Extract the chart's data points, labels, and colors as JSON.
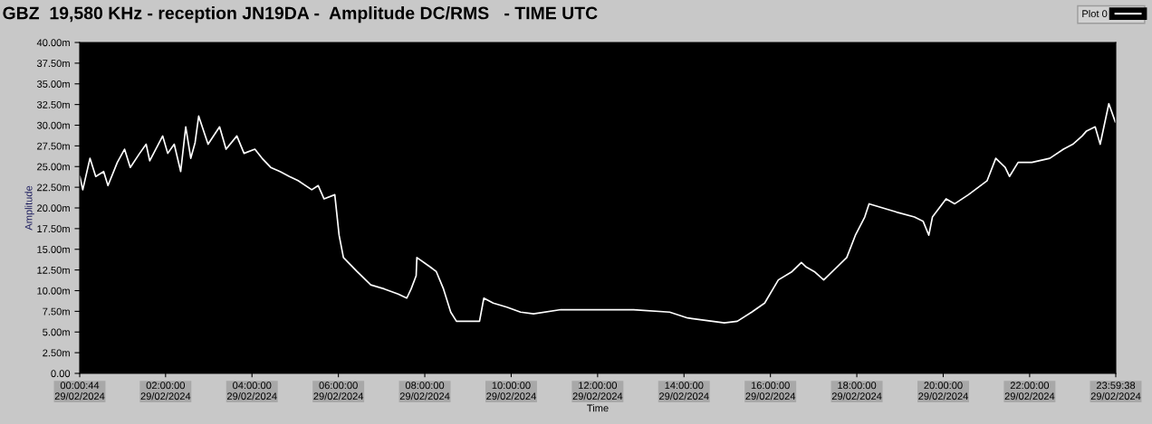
{
  "chart_data": {
    "type": "line",
    "title": "GBZ  19,580 KHz - reception JN19DA -  Amplitude DC/RMS   - TIME UTC",
    "xlabel": "Time",
    "ylabel": "Amplitude",
    "x": [
      "2024-02-29T00:01",
      "2024-02-29T00:05",
      "2024-02-29T00:15",
      "2024-02-29T00:23",
      "2024-02-29T00:34",
      "2024-02-29T00:40",
      "2024-02-29T00:53",
      "2024-02-29T01:03",
      "2024-02-29T01:11",
      "2024-02-29T01:24",
      "2024-02-29T01:33",
      "2024-02-29T01:38",
      "2024-02-29T01:56",
      "2024-02-29T02:03",
      "2024-02-29T02:12",
      "2024-02-29T02:21",
      "2024-02-29T02:28",
      "2024-02-29T02:35",
      "2024-02-29T02:41",
      "2024-02-29T02:46",
      "2024-02-29T02:59",
      "2024-02-29T03:15",
      "2024-02-29T03:24",
      "2024-02-29T03:39",
      "2024-02-29T03:49",
      "2024-02-29T04:04",
      "2024-02-29T04:14",
      "2024-02-29T04:26",
      "2024-02-29T04:39",
      "2024-02-29T04:52",
      "2024-02-29T05:04",
      "2024-02-29T05:23",
      "2024-02-29T05:32",
      "2024-02-29T05:40",
      "2024-02-29T05:55",
      "2024-02-29T06:01",
      "2024-02-29T06:07",
      "2024-02-29T06:26",
      "2024-02-29T06:45",
      "2024-02-29T07:04",
      "2024-02-29T07:23",
      "2024-02-29T07:35",
      "2024-02-29T07:41",
      "2024-02-29T07:48",
      "2024-02-29T07:49",
      "2024-02-29T08:07",
      "2024-02-29T08:16",
      "2024-02-29T08:26",
      "2024-02-29T08:36",
      "2024-02-29T08:44",
      "2024-02-29T08:57",
      "2024-02-29T09:16",
      "2024-02-29T09:22",
      "2024-02-29T09:35",
      "2024-02-29T09:54",
      "2024-02-29T10:13",
      "2024-02-29T10:31",
      "2024-02-29T11:09",
      "2024-02-29T11:59",
      "2024-02-29T12:50",
      "2024-02-29T13:40",
      "2024-02-29T14:05",
      "2024-02-29T14:56",
      "2024-02-29T15:14",
      "2024-02-29T15:34",
      "2024-02-29T15:52",
      "2024-02-29T16:11",
      "2024-02-29T16:30",
      "2024-02-29T16:43",
      "2024-02-29T16:49",
      "2024-02-29T17:01",
      "2024-02-29T17:14",
      "2024-02-29T17:26",
      "2024-02-29T17:46",
      "2024-02-29T17:58",
      "2024-02-29T18:11",
      "2024-02-29T18:17",
      "2024-02-29T18:36",
      "2024-02-29T18:55",
      "2024-02-29T19:20",
      "2024-02-29T19:32",
      "2024-02-29T19:40",
      "2024-02-29T19:45",
      "2024-02-29T20:04",
      "2024-02-29T20:16",
      "2024-02-29T20:35",
      "2024-02-29T21:01",
      "2024-02-29T21:13",
      "2024-02-29T21:26",
      "2024-02-29T21:32",
      "2024-02-29T21:44",
      "2024-02-29T22:03",
      "2024-02-29T22:28",
      "2024-02-29T22:47",
      "2024-02-29T23:00",
      "2024-02-29T23:13",
      "2024-02-29T23:19",
      "2024-02-29T23:31",
      "2024-02-29T23:38",
      "2024-02-29T23:50",
      "2024-02-29T23:59"
    ],
    "series": [
      {
        "name": "Plot 0",
        "color": "#ffffff",
        "values": [
          23.8,
          22.2,
          26.0,
          23.8,
          24.4,
          22.7,
          25.5,
          27.1,
          24.9,
          26.6,
          27.7,
          25.7,
          28.7,
          26.6,
          27.7,
          24.4,
          29.8,
          26.0,
          27.9,
          31.1,
          27.7,
          29.8,
          27.1,
          28.7,
          26.6,
          27.1,
          26.0,
          24.9,
          24.4,
          23.8,
          23.3,
          22.2,
          22.7,
          21.1,
          21.6,
          16.7,
          14.0,
          12.3,
          10.7,
          10.2,
          9.6,
          9.1,
          10.2,
          11.8,
          14.0,
          12.9,
          12.3,
          10.2,
          7.4,
          6.3,
          6.3,
          6.3,
          9.1,
          8.5,
          8.0,
          7.4,
          7.2,
          7.7,
          7.7,
          7.7,
          7.4,
          6.7,
          6.1,
          6.3,
          7.4,
          8.5,
          11.3,
          12.3,
          13.4,
          12.9,
          12.3,
          11.3,
          12.3,
          14.0,
          16.7,
          18.9,
          20.5,
          20.0,
          19.5,
          18.9,
          18.4,
          16.7,
          18.9,
          21.1,
          20.5,
          21.6,
          23.3,
          26.0,
          24.9,
          23.8,
          25.5,
          25.5,
          26.0,
          27.1,
          27.7,
          28.7,
          29.3,
          29.8,
          27.7,
          32.6,
          30.4
        ]
      }
    ],
    "xlim": [
      "2024-02-29T00:00:44",
      "2024-02-29T23:59:38"
    ],
    "xticks": [
      {
        "value": "2024-02-29T00:00:44",
        "label": "00:00:44\n29/02/2024"
      },
      {
        "value": "2024-02-29T02:00",
        "label": "02:00:00\n29/02/2024"
      },
      {
        "value": "2024-02-29T04:00",
        "label": "04:00:00\n29/02/2024"
      },
      {
        "value": "2024-02-29T06:00",
        "label": "06:00:00\n29/02/2024"
      },
      {
        "value": "2024-02-29T08:00",
        "label": "08:00:00\n29/02/2024"
      },
      {
        "value": "2024-02-29T10:00",
        "label": "10:00:00\n29/02/2024"
      },
      {
        "value": "2024-02-29T12:00",
        "label": "12:00:00\n29/02/2024"
      },
      {
        "value": "2024-02-29T14:00",
        "label": "14:00:00\n29/02/2024"
      },
      {
        "value": "2024-02-29T16:00",
        "label": "16:00:00\n29/02/2024"
      },
      {
        "value": "2024-02-29T18:00",
        "label": "18:00:00\n29/02/2024"
      },
      {
        "value": "2024-02-29T20:00",
        "label": "20:00:00\n29/02/2024"
      },
      {
        "value": "2024-02-29T22:00",
        "label": "22:00:00\n29/02/2024"
      },
      {
        "value": "2024-02-29T23:59:38",
        "label": "23:59:38\n29/02/2024"
      }
    ],
    "ylim": [
      0,
      40
    ],
    "yticks": [
      {
        "value": 0,
        "label": "0.00"
      },
      {
        "value": 2.5,
        "label": "2.50m"
      },
      {
        "value": 5,
        "label": "5.00m"
      },
      {
        "value": 7.5,
        "label": "7.50m"
      },
      {
        "value": 10,
        "label": "10.00m"
      },
      {
        "value": 12.5,
        "label": "12.50m"
      },
      {
        "value": 15,
        "label": "15.00m"
      },
      {
        "value": 17.5,
        "label": "17.50m"
      },
      {
        "value": 20,
        "label": "20.00m"
      },
      {
        "value": 22.5,
        "label": "22.50m"
      },
      {
        "value": 25,
        "label": "25.00m"
      },
      {
        "value": 27.5,
        "label": "27.50m"
      },
      {
        "value": 30,
        "label": "30.00m"
      },
      {
        "value": 32.5,
        "label": "32.50m"
      },
      {
        "value": 35,
        "label": "35.00m"
      },
      {
        "value": 37.5,
        "label": "37.50m"
      },
      {
        "value": 40,
        "label": "40.00m"
      }
    ],
    "grid": false,
    "legend": "top right",
    "marker": "none",
    "line_style": "solid"
  }
}
